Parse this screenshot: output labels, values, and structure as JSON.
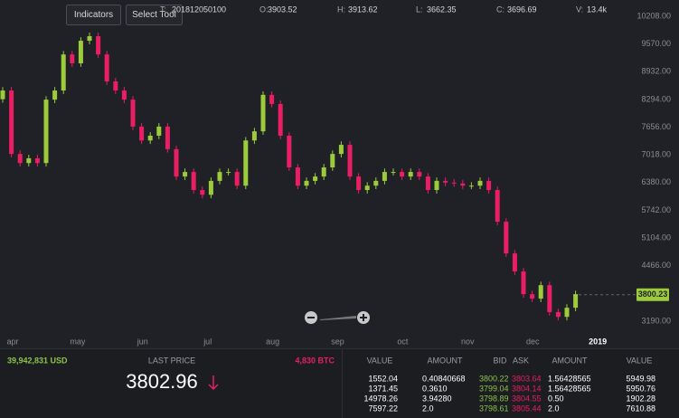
{
  "toolbar": {
    "buttons": [
      "Indicators",
      "Select Tool"
    ],
    "ohlc": [
      {
        "label": "T:",
        "value": "201812050100"
      },
      {
        "label": "O:",
        "value": "3903.52"
      },
      {
        "label": "H:",
        "value": "3913.62"
      },
      {
        "label": "L:",
        "value": "3662.35"
      },
      {
        "label": "C:",
        "value": "3696.69"
      },
      {
        "label": "V:",
        "value": "13.4k"
      }
    ]
  },
  "chart_data": {
    "type": "candlestick",
    "up_color": "#9ccc3c",
    "down_color": "#ea1e63",
    "x_labels": [
      "apr",
      "may",
      "jun",
      "jul",
      "aug",
      "sep",
      "oct",
      "nov",
      "dec",
      "2019"
    ],
    "ylim": [
      2920,
      10583
    ],
    "yticks": [
      {
        "value": 10208,
        "label": "10208.00"
      },
      {
        "value": 9570,
        "label": "9570.00"
      },
      {
        "value": 8932,
        "label": "8932.00"
      },
      {
        "value": 8294,
        "label": "8294.00"
      },
      {
        "value": 7656,
        "label": "7656.00"
      },
      {
        "value": 7018,
        "label": "7018.00"
      },
      {
        "value": 6380,
        "label": "6380.00"
      },
      {
        "value": 5742,
        "label": "5742.00"
      },
      {
        "value": 5104,
        "label": "5104.00"
      },
      {
        "value": 4466,
        "label": "4466.00"
      },
      {
        "value": 3190,
        "label": "3190.00"
      }
    ],
    "grid": false,
    "current_price": 3800.23,
    "open": [
      8300,
      8500,
      7040,
      6830,
      6940,
      6830,
      8290,
      8500,
      9330,
      9125,
      9645,
      9750,
      9330,
      8710,
      8500,
      8290,
      7670,
      7350,
      7460,
      7670,
      7150,
      6520,
      6625,
      6210,
      6100,
      6420,
      6625,
      6625,
      6310,
      7350,
      7560,
      8400,
      8190,
      7460,
      6730,
      6310,
      6420,
      6520,
      6730,
      7040,
      7250,
      6520,
      6210,
      6310,
      6420,
      6625,
      6625,
      6520,
      6625,
      6520,
      6210,
      6420,
      6380,
      6360,
      6310,
      6310,
      6420,
      6210,
      5480,
      4750,
      4335,
      3813,
      3710,
      4020,
      3400,
      3290,
      3500
    ],
    "high": [
      8580,
      8580,
      7120,
      7020,
      7020,
      8370,
      8580,
      9410,
      9410,
      9725,
      9830,
      9830,
      9410,
      8790,
      8580,
      8370,
      7750,
      7540,
      7750,
      7750,
      7230,
      6705,
      6705,
      6290,
      6500,
      6705,
      6705,
      6705,
      7430,
      7640,
      8480,
      8480,
      8270,
      7540,
      6810,
      6500,
      6600,
      6810,
      7120,
      7330,
      7330,
      6600,
      6390,
      6500,
      6705,
      6705,
      6705,
      6705,
      6705,
      6600,
      6500,
      6500,
      6460,
      6440,
      6390,
      6500,
      6500,
      6290,
      5560,
      4830,
      4415,
      3893,
      4100,
      4100,
      3480,
      3580,
      3893
    ],
    "low": [
      8220,
      6960,
      6750,
      6750,
      6750,
      6750,
      8210,
      8420,
      9045,
      9045,
      9565,
      9250,
      8630,
      8420,
      8210,
      7590,
      7270,
      7270,
      7380,
      7070,
      6440,
      6440,
      6130,
      6020,
      6020,
      6340,
      6545,
      6230,
      6230,
      7270,
      7480,
      8110,
      7380,
      6650,
      6230,
      6230,
      6340,
      6440,
      6650,
      6960,
      6440,
      6130,
      6130,
      6230,
      6340,
      6545,
      6440,
      6440,
      6440,
      6130,
      6130,
      6300,
      6280,
      6230,
      6230,
      6230,
      6130,
      5400,
      4670,
      4255,
      3733,
      3630,
      3630,
      3320,
      3210,
      3210,
      3420
    ],
    "close": [
      8500,
      7040,
      6830,
      6940,
      6830,
      8290,
      8500,
      9330,
      9125,
      9645,
      9750,
      9330,
      8710,
      8500,
      8290,
      7670,
      7350,
      7460,
      7670,
      7150,
      6520,
      6625,
      6210,
      6100,
      6420,
      6625,
      6625,
      6310,
      7350,
      7560,
      8400,
      8190,
      7460,
      6730,
      6310,
      6420,
      6520,
      6730,
      7040,
      7250,
      6520,
      6210,
      6310,
      6420,
      6625,
      6625,
      6520,
      6625,
      6520,
      6210,
      6420,
      6380,
      6360,
      6310,
      6310,
      6420,
      6210,
      5480,
      4750,
      4335,
      3813,
      3710,
      4020,
      3400,
      3290,
      3500,
      3813
    ]
  },
  "summary": {
    "volume_usd": "39,942,831 USD",
    "last_price_label": "LAST PRICE",
    "volume_btc": "4,830 BTC",
    "last_price": "3802.96"
  },
  "orderbook": {
    "headers": [
      "VALUE",
      "AMOUNT",
      "BID",
      "ASK",
      "AMOUNT",
      "VALUE"
    ],
    "rows": [
      [
        "1552.04",
        "0.40840668",
        "3800.22",
        "3803.64",
        "1.56428565",
        "5949.98"
      ],
      [
        "1371.45",
        "0.3610",
        "3799.04",
        "3804.14",
        "1.56428565",
        "5950.76"
      ],
      [
        "14978.26",
        "3.94280",
        "3798.89",
        "3804.55",
        "0.50",
        "1902.28"
      ],
      [
        "7597.22",
        "2.0",
        "3798.61",
        "3805.44",
        "2.0",
        "7610.88"
      ]
    ]
  }
}
